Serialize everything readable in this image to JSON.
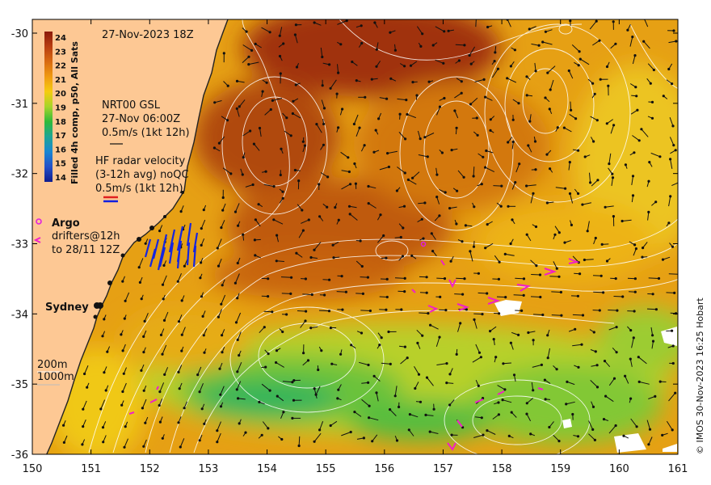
{
  "timestamp": "27-Nov-2023 18Z",
  "colorbar": {
    "label": "Filled 4h comp, p50, All Sats",
    "ticks": [
      "24",
      "23",
      "22",
      "21",
      "20",
      "19",
      "18",
      "17",
      "16",
      "15",
      "14"
    ],
    "colors": [
      "#8b1a0a",
      "#b83d10",
      "#d86a10",
      "#f09a10",
      "#f5cc10",
      "#a6d42a",
      "#2fba3a",
      "#1ea595",
      "#1a86d2",
      "#2450c8",
      "#101d8e"
    ]
  },
  "legend": {
    "gsl_title": "NRT00 GSL",
    "gsl_date": "27-Nov 06:00Z",
    "gsl_scale": "0.5m/s (1kt 12h)",
    "hf_title": "HF radar velocity",
    "hf_avg": "(3-12h avg) noQC",
    "hf_scale": "0.5m/s (1kt 12h)",
    "argo_label": "Argo",
    "drifters_line1": "drifters@12h",
    "drifters_line2": "to 28/11 12Z"
  },
  "places": {
    "sydney": "Sydney"
  },
  "depth_labels": [
    "200m",
    "1000m"
  ],
  "axes": {
    "x_ticks": [
      "150",
      "151",
      "152",
      "153",
      "154",
      "155",
      "156",
      "157",
      "158",
      "159",
      "160",
      "161"
    ],
    "y_ticks": [
      "-30",
      "-31",
      "-32",
      "-33",
      "-34",
      "-35",
      "-36"
    ]
  },
  "credit": "© IMOS 30-Nov-2023 16:25 Hobart",
  "colors": {
    "land": "#fdc894",
    "argo": "#e020e0",
    "drifter": "#f020c8",
    "hf_red": "#e02020",
    "hf_blue": "#1020e0"
  }
}
